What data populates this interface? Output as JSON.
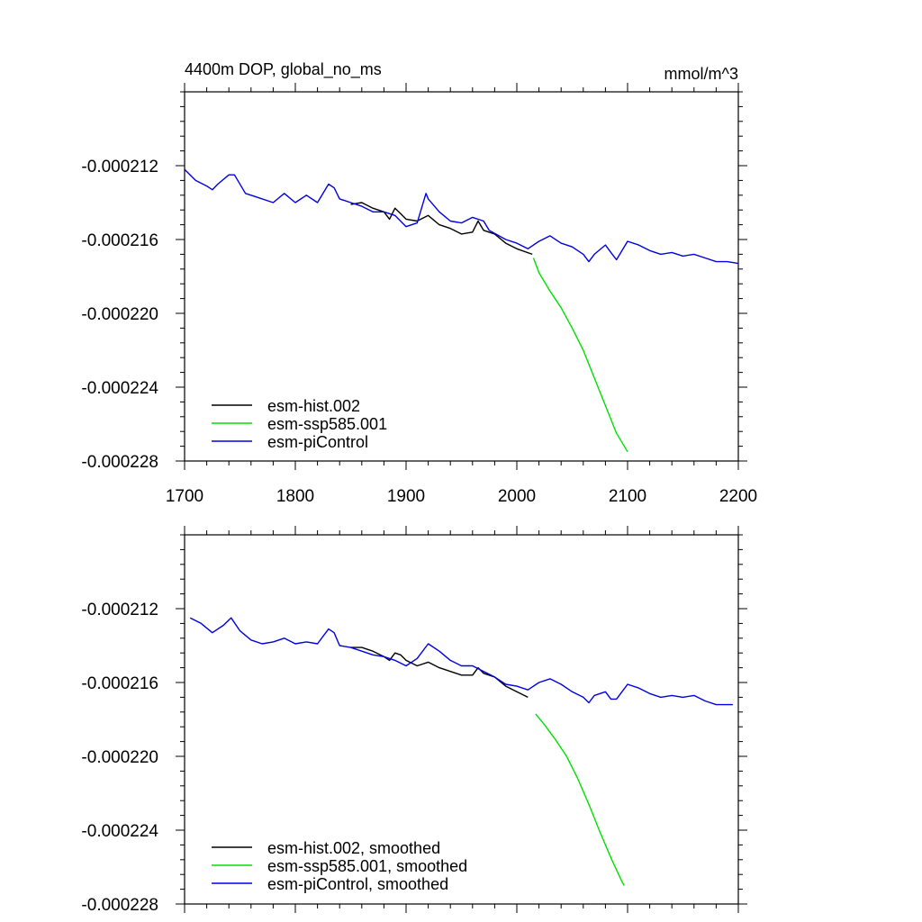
{
  "chart_data": [
    {
      "type": "line",
      "title": "4400m DOP, global_no_ms",
      "units": "mmol/m^3",
      "xlim": [
        1700,
        2200
      ],
      "ylim": [
        -0.000228,
        -0.000208
      ],
      "x_ticks": [
        1700,
        1800,
        1900,
        2000,
        2100,
        2200
      ],
      "x_tick_labels": [
        "1700",
        "1800",
        "1900",
        "2000",
        "2100",
        "2200"
      ],
      "y_ticks": [
        -0.000212,
        -0.000216,
        -0.00022,
        -0.000224,
        -0.000228
      ],
      "y_tick_labels": [
        "-0.000212",
        "-0.000216",
        "-0.000220",
        "-0.000224",
        "-0.000228"
      ],
      "legend_position": "bottom-left",
      "series": [
        {
          "name": "esm-hist.002",
          "color": "#000000",
          "x": [
            1850,
            1860,
            1870,
            1880,
            1885,
            1890,
            1895,
            1900,
            1910,
            1920,
            1930,
            1940,
            1950,
            1960,
            1965,
            1970,
            1980,
            1990,
            2000,
            2014
          ],
          "y": [
            -0.0002141,
            -0.000214,
            -0.0002143,
            -0.0002145,
            -0.0002149,
            -0.0002143,
            -0.0002146,
            -0.0002149,
            -0.000215,
            -0.0002147,
            -0.0002152,
            -0.0002154,
            -0.0002157,
            -0.0002156,
            -0.000215,
            -0.0002155,
            -0.0002157,
            -0.0002162,
            -0.0002165,
            -0.0002168
          ]
        },
        {
          "name": "esm-ssp585.001",
          "color": "#00e000",
          "x": [
            2015,
            2020,
            2030,
            2040,
            2050,
            2060,
            2070,
            2080,
            2090,
            2100
          ],
          "y": [
            -0.000217,
            -0.0002178,
            -0.0002188,
            -0.0002197,
            -0.0002208,
            -0.000222,
            -0.0002235,
            -0.000225,
            -0.0002265,
            -0.0002275
          ]
        },
        {
          "name": "esm-piControl",
          "color": "#0000e0",
          "x": [
            1700,
            1710,
            1720,
            1725,
            1730,
            1740,
            1745,
            1755,
            1765,
            1780,
            1790,
            1800,
            1810,
            1820,
            1830,
            1835,
            1840,
            1850,
            1860,
            1870,
            1880,
            1890,
            1900,
            1910,
            1918,
            1920,
            1930,
            1940,
            1950,
            1960,
            1970,
            1975,
            1990,
            2000,
            2010,
            2020,
            2030,
            2040,
            2050,
            2060,
            2065,
            2070,
            2080,
            2085,
            2090,
            2100,
            2110,
            2120,
            2130,
            2140,
            2150,
            2160,
            2170,
            2180,
            2190,
            2200
          ],
          "y": [
            -0.0002122,
            -0.0002128,
            -0.0002131,
            -0.0002133,
            -0.000213,
            -0.0002125,
            -0.0002125,
            -0.0002135,
            -0.0002137,
            -0.000214,
            -0.0002135,
            -0.000214,
            -0.0002136,
            -0.000214,
            -0.000213,
            -0.0002132,
            -0.0002138,
            -0.000214,
            -0.0002142,
            -0.0002145,
            -0.0002145,
            -0.0002147,
            -0.0002153,
            -0.0002151,
            -0.0002135,
            -0.0002138,
            -0.0002145,
            -0.000215,
            -0.0002151,
            -0.0002148,
            -0.000215,
            -0.0002155,
            -0.000216,
            -0.0002162,
            -0.0002165,
            -0.0002161,
            -0.0002158,
            -0.0002162,
            -0.0002164,
            -0.0002168,
            -0.0002172,
            -0.0002168,
            -0.0002163,
            -0.0002167,
            -0.0002171,
            -0.0002161,
            -0.0002163,
            -0.0002166,
            -0.0002168,
            -0.0002167,
            -0.0002169,
            -0.0002168,
            -0.000217,
            -0.0002172,
            -0.0002172,
            -0.0002173
          ]
        }
      ]
    },
    {
      "type": "line",
      "xlim": [
        1700,
        2200
      ],
      "ylim": [
        -0.000228,
        -0.000208
      ],
      "x_ticks": [
        1700,
        1800,
        1900,
        2000,
        2100,
        2200
      ],
      "y_ticks": [
        -0.000212,
        -0.000216,
        -0.00022,
        -0.000224,
        -0.000228
      ],
      "y_tick_labels": [
        "-0.000212",
        "-0.000216",
        "-0.000220",
        "-0.000224",
        "-0.000228"
      ],
      "legend_position": "bottom-left",
      "series": [
        {
          "name": "esm-hist.002, smoothed",
          "color": "#000000",
          "x": [
            1850,
            1860,
            1870,
            1880,
            1885,
            1890,
            1895,
            1900,
            1910,
            1920,
            1930,
            1940,
            1950,
            1960,
            1965,
            1970,
            1980,
            1990,
            2000,
            2010
          ],
          "y": [
            -0.0002141,
            -0.0002141,
            -0.0002143,
            -0.0002146,
            -0.0002148,
            -0.0002144,
            -0.0002145,
            -0.0002148,
            -0.0002151,
            -0.0002149,
            -0.0002152,
            -0.0002154,
            -0.0002156,
            -0.0002156,
            -0.0002152,
            -0.0002155,
            -0.0002157,
            -0.0002162,
            -0.0002165,
            -0.0002168
          ]
        },
        {
          "name": "esm-ssp585.001, smoothed",
          "color": "#00e000",
          "x": [
            2017,
            2025,
            2035,
            2045,
            2055,
            2065,
            2075,
            2085,
            2095,
            2097
          ],
          "y": [
            -0.0002177,
            -0.0002183,
            -0.0002191,
            -0.00022,
            -0.0002212,
            -0.0002226,
            -0.0002241,
            -0.0002255,
            -0.0002268,
            -0.000227
          ]
        },
        {
          "name": "esm-piControl, smoothed",
          "color": "#0000e0",
          "x": [
            1705,
            1715,
            1725,
            1735,
            1742,
            1750,
            1760,
            1770,
            1780,
            1790,
            1800,
            1810,
            1820,
            1830,
            1835,
            1840,
            1850,
            1860,
            1870,
            1880,
            1890,
            1900,
            1910,
            1920,
            1930,
            1940,
            1950,
            1960,
            1970,
            1980,
            1990,
            2000,
            2010,
            2020,
            2030,
            2040,
            2050,
            2060,
            2065,
            2070,
            2080,
            2085,
            2090,
            2100,
            2110,
            2120,
            2130,
            2140,
            2150,
            2160,
            2170,
            2180,
            2190,
            2195
          ],
          "y": [
            -0.0002125,
            -0.0002128,
            -0.0002133,
            -0.0002129,
            -0.0002125,
            -0.0002132,
            -0.0002137,
            -0.0002139,
            -0.0002138,
            -0.0002136,
            -0.0002139,
            -0.0002138,
            -0.0002139,
            -0.0002131,
            -0.0002133,
            -0.000214,
            -0.0002141,
            -0.0002143,
            -0.0002145,
            -0.0002146,
            -0.0002148,
            -0.0002151,
            -0.0002147,
            -0.0002139,
            -0.0002143,
            -0.0002148,
            -0.0002151,
            -0.0002151,
            -0.0002154,
            -0.0002157,
            -0.0002161,
            -0.0002162,
            -0.0002164,
            -0.000216,
            -0.0002158,
            -0.0002161,
            -0.0002165,
            -0.0002168,
            -0.0002171,
            -0.0002167,
            -0.0002165,
            -0.0002169,
            -0.0002169,
            -0.0002161,
            -0.0002163,
            -0.0002166,
            -0.0002168,
            -0.0002167,
            -0.0002168,
            -0.0002167,
            -0.000217,
            -0.0002172,
            -0.0002172,
            -0.0002172
          ]
        }
      ]
    }
  ]
}
